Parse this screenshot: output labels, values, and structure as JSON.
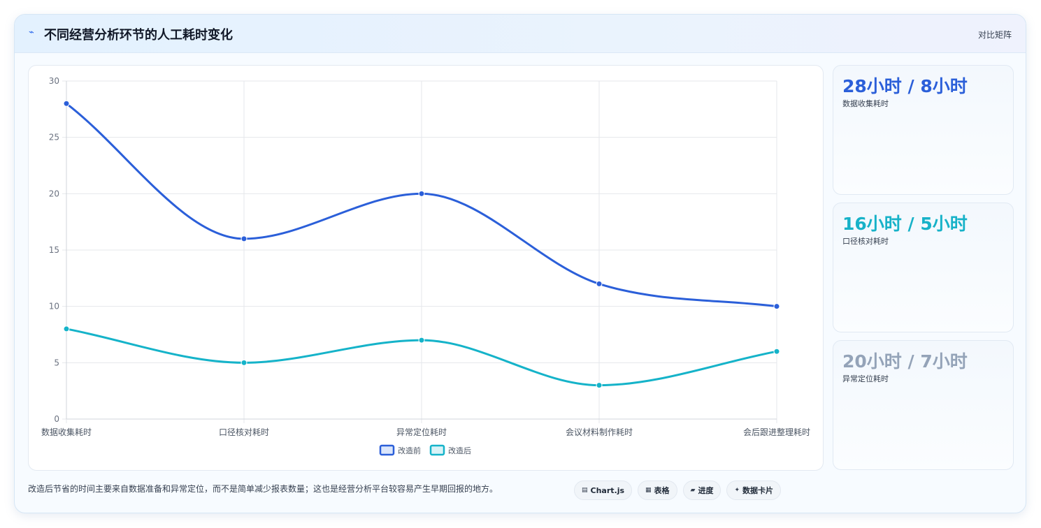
{
  "header": {
    "icon": "line-chart-icon",
    "icon_glyph": "⌁",
    "title": "不同经营分析环节的人工耗时变化",
    "right_label": "对比矩阵"
  },
  "chart_data": {
    "type": "line",
    "categories": [
      "数据收集耗时",
      "口径核对耗时",
      "异常定位耗时",
      "会议材料制作耗时",
      "会后跟进整理耗时"
    ],
    "series": [
      {
        "name": "改造前",
        "values": [
          28,
          16,
          20,
          12,
          10
        ],
        "color": "#2b5fd9"
      },
      {
        "name": "改造后",
        "values": [
          8,
          5,
          7,
          3,
          6
        ],
        "color": "#15b3c9"
      }
    ],
    "ylim": [
      0,
      30
    ],
    "yticks": [
      0,
      5,
      10,
      15,
      20,
      25,
      30
    ],
    "grid": true,
    "legend": "bottom"
  },
  "stats": [
    {
      "value": "28小时 / 8小时",
      "label": "数据收集耗时",
      "color": "#2b5fd9"
    },
    {
      "value": "16小时 / 5小时",
      "label": "口径核对耗时",
      "color": "#17b2c8"
    },
    {
      "value": "20小时 / 7小时",
      "label": "异常定位耗时",
      "color": "#94a3b8"
    }
  ],
  "footnote": "改造后节省的时间主要来自数据准备和异常定位，而不是简单减少报表数量；这也是经营分析平台较容易产生早期回报的地方。",
  "chips": [
    {
      "icon": "chart-icon",
      "glyph": "▤",
      "label": "Chart.js"
    },
    {
      "icon": "table-icon",
      "glyph": "▦",
      "label": "表格"
    },
    {
      "icon": "progress-icon",
      "glyph": "▰",
      "label": "进度"
    },
    {
      "icon": "sparkle-icon",
      "glyph": "✦",
      "label": "数据卡片"
    }
  ]
}
